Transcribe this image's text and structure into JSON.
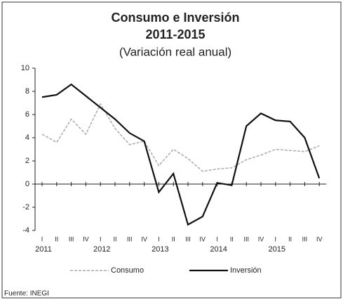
{
  "chart_data": {
    "type": "line",
    "title": "Consumo e Inversión",
    "subtitle": "2011-2015",
    "subtitle2": "(Variación real anual)",
    "categories": [
      "I",
      "II",
      "III",
      "IV",
      "I",
      "II",
      "III",
      "IV",
      "I",
      "II",
      "III",
      "IV",
      "I",
      "II",
      "III",
      "IV",
      "I",
      "II",
      "III",
      "IV"
    ],
    "years": [
      "2011",
      "2012",
      "2013",
      "2014",
      "2015"
    ],
    "series": [
      {
        "name": "Consumo",
        "color": "#aaaaaa",
        "dashed": true,
        "values": [
          4.3,
          3.6,
          5.6,
          4.3,
          6.9,
          4.8,
          3.4,
          3.7,
          1.6,
          3.0,
          2.2,
          1.1,
          1.3,
          1.4,
          2.1,
          2.5,
          3.0,
          2.9,
          2.8,
          3.3
        ]
      },
      {
        "name": "Inversión",
        "color": "#111111",
        "dashed": false,
        "values": [
          7.5,
          7.7,
          8.6,
          7.6,
          6.6,
          5.6,
          4.4,
          3.7,
          -0.7,
          0.9,
          -3.5,
          -2.8,
          0.1,
          -0.1,
          5.0,
          6.1,
          5.5,
          5.4,
          4.0,
          0.5
        ]
      }
    ],
    "ylim": [
      -4,
      10
    ],
    "yticks": [
      -4,
      -2,
      0,
      2,
      4,
      6,
      8,
      10
    ],
    "source": "Fuente: INEGI"
  }
}
